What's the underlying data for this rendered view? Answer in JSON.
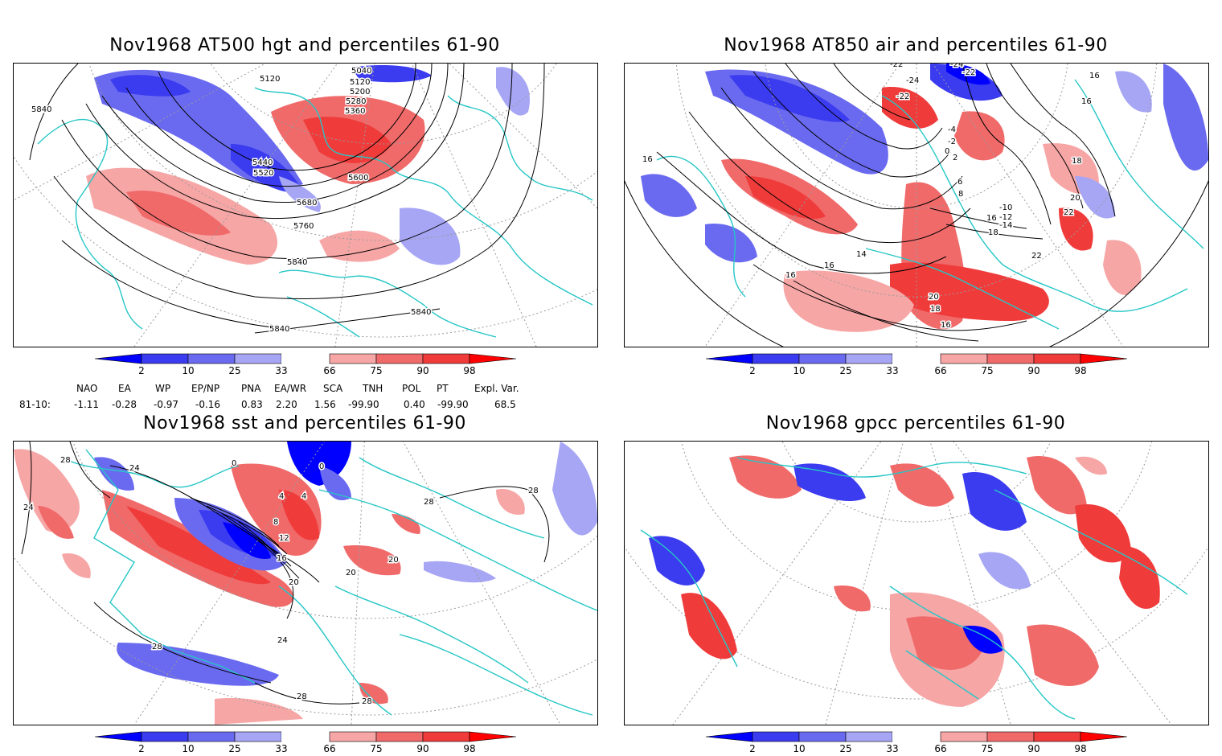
{
  "panels": [
    {
      "id": "p1",
      "title": "Nov1968 AT500 hgt and percentiles 61-90",
      "contour_labels": [
        "5840",
        "5120",
        "5040",
        "5120",
        "5200",
        "5280",
        "5360",
        "5440",
        "5520",
        "5600",
        "5680",
        "5760",
        "5840",
        "5840",
        "5840"
      ]
    },
    {
      "id": "p2",
      "title": "Nov1968 AT850 air and percentiles 61-90",
      "contour_labels": [
        "16",
        "-22",
        "-24",
        "-22",
        "-24",
        "-22",
        "-4",
        "-2",
        "0",
        "2",
        "6",
        "8",
        "16",
        "16",
        "18",
        "20",
        "22",
        "-10",
        "-12",
        "-14",
        "16",
        "18",
        "14",
        "16",
        "16",
        "22",
        "20",
        "18",
        "16"
      ]
    },
    {
      "id": "p3",
      "title": "Nov1968 sst and percentiles 61-90",
      "contour_labels": [
        "28",
        "24",
        "24",
        "0",
        "0",
        "4",
        "4",
        "8",
        "12",
        "16",
        "20",
        "20",
        "20",
        "28",
        "24",
        "28",
        "28",
        "28",
        "28"
      ]
    },
    {
      "id": "p4",
      "title": "Nov1968 gpcc percentiles 61-90",
      "contour_labels": []
    }
  ],
  "colorbar": {
    "labels": [
      "2",
      "10",
      "25",
      "33",
      "66",
      "75",
      "90",
      "98"
    ],
    "colors": {
      "lt2": "#0000ff",
      "b2_10": "#3b3bf0",
      "b10_25": "#6a6af0",
      "b25_33": "#a6a6f5",
      "b66_75": "#f7a6a6",
      "b75_90": "#f06a6a",
      "b90_98": "#f03b3b",
      "gt98": "#ff0000"
    }
  },
  "indices": {
    "headers": [
      "NAO",
      "EA",
      "WP",
      "EP/NP",
      "PNA",
      "EA/WR",
      "SCA",
      "TNH",
      "POL",
      "PT",
      "Expl. Var."
    ],
    "row_label": "81-10:",
    "values": [
      "-1.11",
      "-0.28",
      "-0.97",
      "-0.16",
      "0.83",
      "2.20",
      "1.56",
      "-99.90",
      "0.40",
      "-99.90",
      "68.5"
    ]
  },
  "colors": {
    "coast": "#26c6c6",
    "contour": "#000000",
    "grid": "#9a9a9a"
  }
}
